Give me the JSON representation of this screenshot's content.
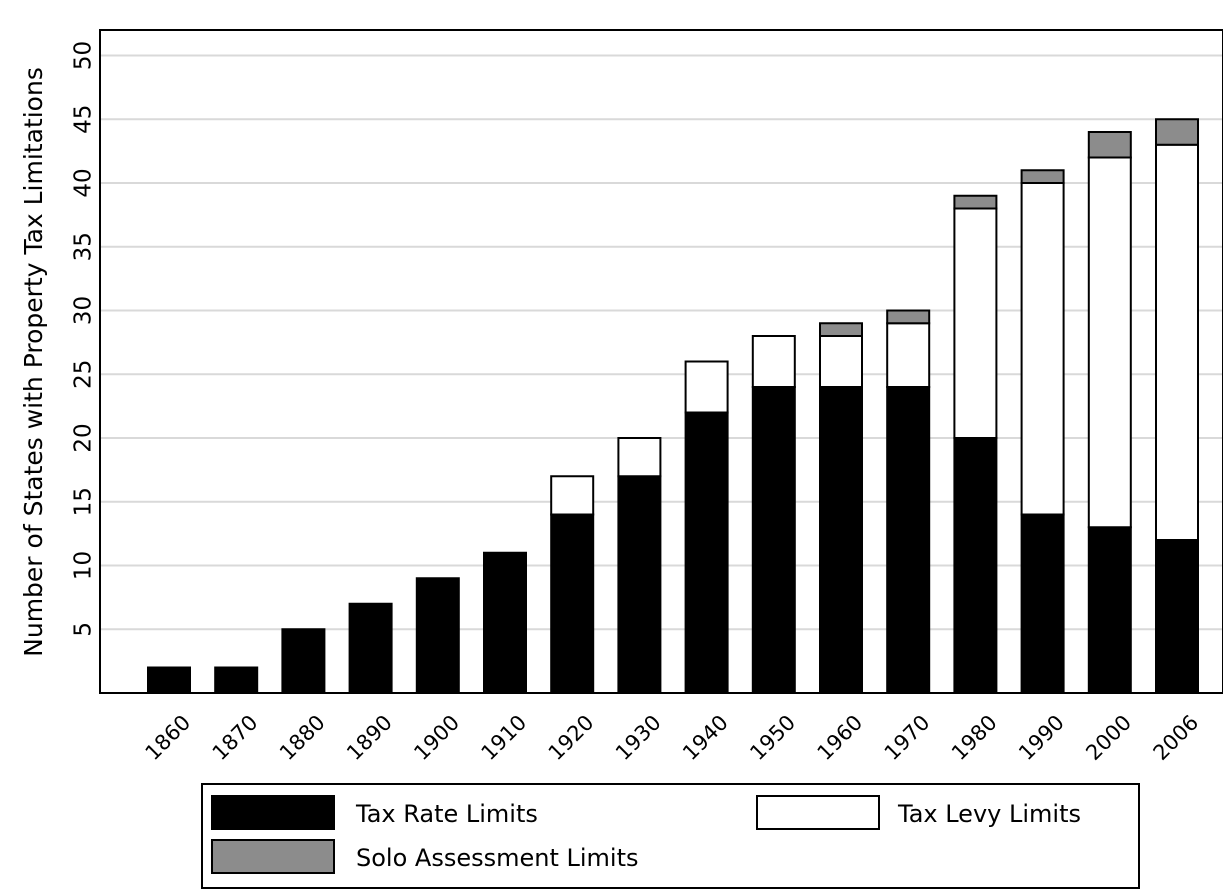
{
  "chart_data": {
    "type": "bar",
    "stacked": true,
    "title": "",
    "xlabel": "",
    "ylabel": "Number of States with Property Tax Limitations",
    "ylim": [
      0,
      52
    ],
    "yticks": [
      5,
      10,
      15,
      20,
      25,
      30,
      35,
      40,
      45,
      50
    ],
    "grid": true,
    "legend_position": "bottom",
    "categories": [
      "1860",
      "1870",
      "1880",
      "1890",
      "1900",
      "1910",
      "1920",
      "1930",
      "1940",
      "1950",
      "1960",
      "1970",
      "1980",
      "1990",
      "2000",
      "2006"
    ],
    "series": [
      {
        "name": "Tax Rate Limits",
        "color": "#000000",
        "values": [
          2,
          2,
          5,
          7,
          9,
          11,
          14,
          17,
          22,
          24,
          24,
          24,
          20,
          14,
          13,
          12
        ]
      },
      {
        "name": "Tax Levy Limits",
        "color": "#ffffff",
        "values": [
          0,
          0,
          0,
          0,
          0,
          0,
          3,
          3,
          4,
          4,
          4,
          5,
          18,
          26,
          29,
          31
        ]
      },
      {
        "name": "Solo Assessment Limits",
        "color": "#8c8c8c",
        "values": [
          0,
          0,
          0,
          0,
          0,
          0,
          0,
          0,
          0,
          0,
          1,
          1,
          1,
          1,
          2,
          2
        ]
      }
    ]
  }
}
